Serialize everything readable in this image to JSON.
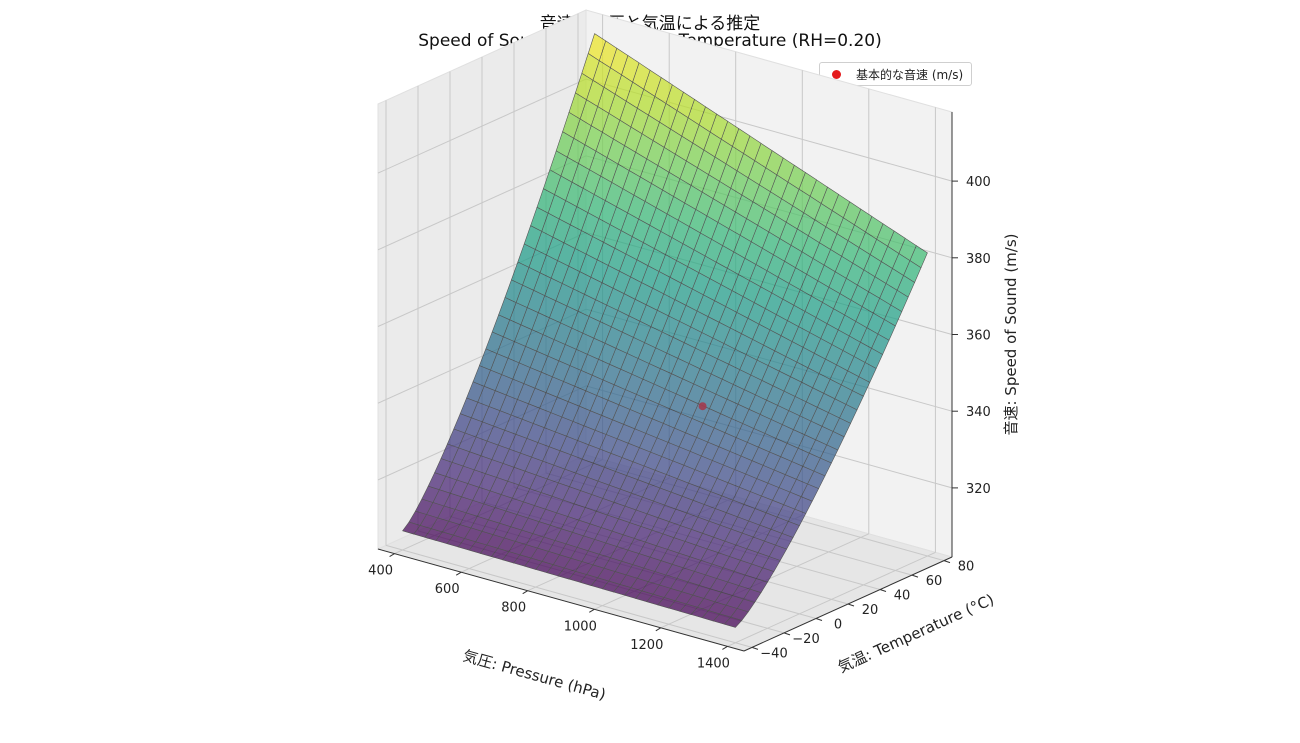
{
  "title": {
    "line1": "音速の気圧と気温による推定",
    "line2": "Speed of Sound vs Pressure & Temperature (RH=0.20)"
  },
  "legend": {
    "label": "基本的な音速 (m/s)",
    "marker_color": "#e41a1c"
  },
  "chart_data": {
    "type": "surface3d",
    "title": "音速の気圧と気温による推定 / Speed of Sound vs Pressure & Temperature (RH=0.20)",
    "xlabel": "気圧: Pressure (hPa)",
    "ylabel": "気温: Temperature (°C)",
    "zlabel": "音速: Speed of Sound (m/s)",
    "x_ticks": [
      400,
      600,
      800,
      1000,
      1200,
      1400
    ],
    "y_ticks": [
      -40,
      -20,
      0,
      20,
      40,
      60,
      80
    ],
    "z_ticks": [
      320,
      340,
      360,
      380,
      400
    ],
    "xlim": [
      350,
      1450
    ],
    "ylim": [
      -45,
      85
    ],
    "zlim": [
      302,
      418
    ],
    "grid": true,
    "colormap": "viridis",
    "surface": {
      "x_range": [
        400,
        1400
      ],
      "y_range": [
        -40,
        80
      ],
      "grid_lines": 30,
      "corners": [
        {
          "pressure": 400,
          "temperature": -40,
          "speed": 307
        },
        {
          "pressure": 1400,
          "temperature": -40,
          "speed": 306
        },
        {
          "pressure": 400,
          "temperature": 80,
          "speed": 414
        },
        {
          "pressure": 1400,
          "temperature": 80,
          "speed": 381
        }
      ]
    },
    "point": {
      "pressure": 1013,
      "temperature": 20,
      "speed": 343
    },
    "legend_position": "upper right"
  }
}
